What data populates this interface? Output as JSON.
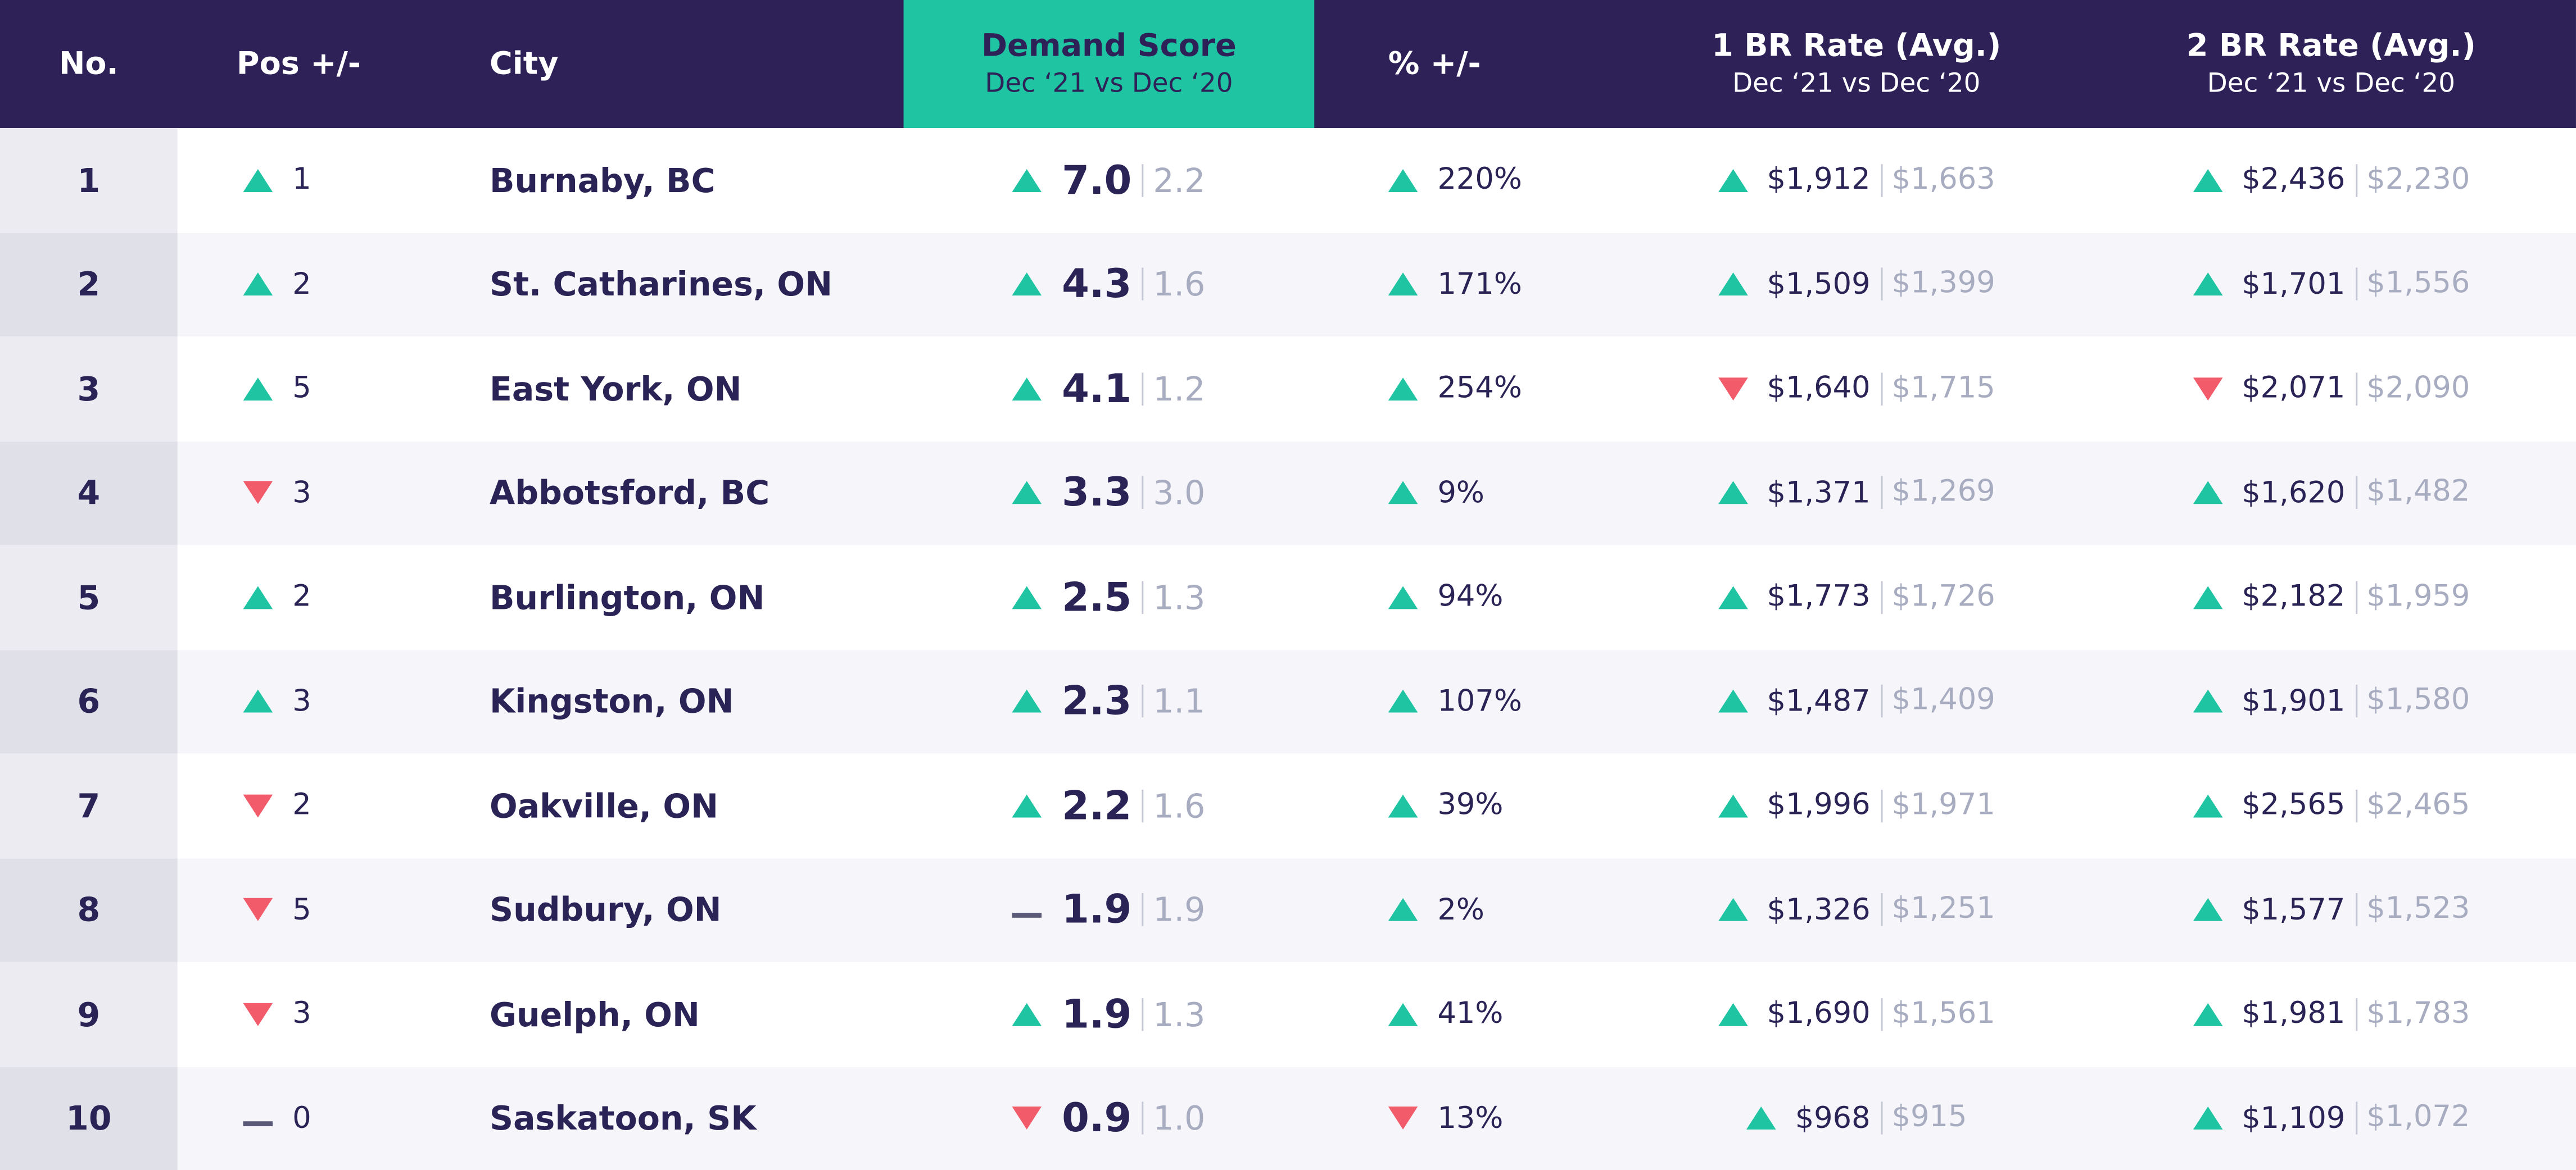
{
  "header": {
    "no": "No.",
    "pos": "Pos +/-",
    "city": "City",
    "score": {
      "title": "Demand Score",
      "sub": "Dec ‘21 vs Dec ‘20"
    },
    "pct": "% +/-",
    "br1": {
      "title": "1 BR Rate (Avg.)",
      "sub": "Dec ‘21 vs Dec ‘20"
    },
    "br2": {
      "title": "2 BR Rate (Avg.)",
      "sub": "Dec ‘21 vs Dec ‘20"
    }
  },
  "rows": [
    {
      "no": "1",
      "pos_dir": "up",
      "pos": "1",
      "city": "Burnaby, BC",
      "score_dir": "up",
      "score": "7.0",
      "score_prev": "2.2",
      "pct_dir": "up",
      "pct": "220%",
      "br1_dir": "up",
      "br1": "$1,912",
      "br1_prev": "$1,663",
      "br2_dir": "up",
      "br2": "$2,436",
      "br2_prev": "$2,230"
    },
    {
      "no": "2",
      "pos_dir": "up",
      "pos": "2",
      "city": "St. Catharines, ON",
      "score_dir": "up",
      "score": "4.3",
      "score_prev": "1.6",
      "pct_dir": "up",
      "pct": "171%",
      "br1_dir": "up",
      "br1": "$1,509",
      "br1_prev": "$1,399",
      "br2_dir": "up",
      "br2": "$1,701",
      "br2_prev": "$1,556"
    },
    {
      "no": "3",
      "pos_dir": "up",
      "pos": "5",
      "city": "East York, ON",
      "score_dir": "up",
      "score": "4.1",
      "score_prev": "1.2",
      "pct_dir": "up",
      "pct": "254%",
      "br1_dir": "down",
      "br1": "$1,640",
      "br1_prev": "$1,715",
      "br2_dir": "down",
      "br2": "$2,071",
      "br2_prev": "$2,090"
    },
    {
      "no": "4",
      "pos_dir": "down",
      "pos": "3",
      "city": "Abbotsford, BC",
      "score_dir": "up",
      "score": "3.3",
      "score_prev": "3.0",
      "pct_dir": "up",
      "pct": "9%",
      "br1_dir": "up",
      "br1": "$1,371",
      "br1_prev": "$1,269",
      "br2_dir": "up",
      "br2": "$1,620",
      "br2_prev": "$1,482"
    },
    {
      "no": "5",
      "pos_dir": "up",
      "pos": "2",
      "city": "Burlington, ON",
      "score_dir": "up",
      "score": "2.5",
      "score_prev": "1.3",
      "pct_dir": "up",
      "pct": "94%",
      "br1_dir": "up",
      "br1": "$1,773",
      "br1_prev": "$1,726",
      "br2_dir": "up",
      "br2": "$2,182",
      "br2_prev": "$1,959"
    },
    {
      "no": "6",
      "pos_dir": "up",
      "pos": "3",
      "city": "Kingston, ON",
      "score_dir": "up",
      "score": "2.3",
      "score_prev": "1.1",
      "pct_dir": "up",
      "pct": "107%",
      "br1_dir": "up",
      "br1": "$1,487",
      "br1_prev": "$1,409",
      "br2_dir": "up",
      "br2": "$1,901",
      "br2_prev": "$1,580"
    },
    {
      "no": "7",
      "pos_dir": "down",
      "pos": "2",
      "city": "Oakville, ON",
      "score_dir": "up",
      "score": "2.2",
      "score_prev": "1.6",
      "pct_dir": "up",
      "pct": "39%",
      "br1_dir": "up",
      "br1": "$1,996",
      "br1_prev": "$1,971",
      "br2_dir": "up",
      "br2": "$2,565",
      "br2_prev": "$2,465"
    },
    {
      "no": "8",
      "pos_dir": "down",
      "pos": "5",
      "city": "Sudbury, ON",
      "score_dir": "flat",
      "score": "1.9",
      "score_prev": "1.9",
      "pct_dir": "up",
      "pct": "2%",
      "br1_dir": "up",
      "br1": "$1,326",
      "br1_prev": "$1,251",
      "br2_dir": "up",
      "br2": "$1,577",
      "br2_prev": "$1,523"
    },
    {
      "no": "9",
      "pos_dir": "down",
      "pos": "3",
      "city": "Guelph, ON",
      "score_dir": "up",
      "score": "1.9",
      "score_prev": "1.3",
      "pct_dir": "up",
      "pct": "41%",
      "br1_dir": "up",
      "br1": "$1,690",
      "br1_prev": "$1,561",
      "br2_dir": "up",
      "br2": "$1,981",
      "br2_prev": "$1,783"
    },
    {
      "no": "10",
      "pos_dir": "flat",
      "pos": "0",
      "city": "Saskatoon, SK",
      "score_dir": "down",
      "score": "0.9",
      "score_prev": "1.0",
      "pct_dir": "down",
      "pct": "13%",
      "br1_dir": "up",
      "br1": "$968",
      "br1_prev": "$915",
      "br2_dir": "up",
      "br2": "$1,109",
      "br2_prev": "$1,072"
    }
  ]
}
